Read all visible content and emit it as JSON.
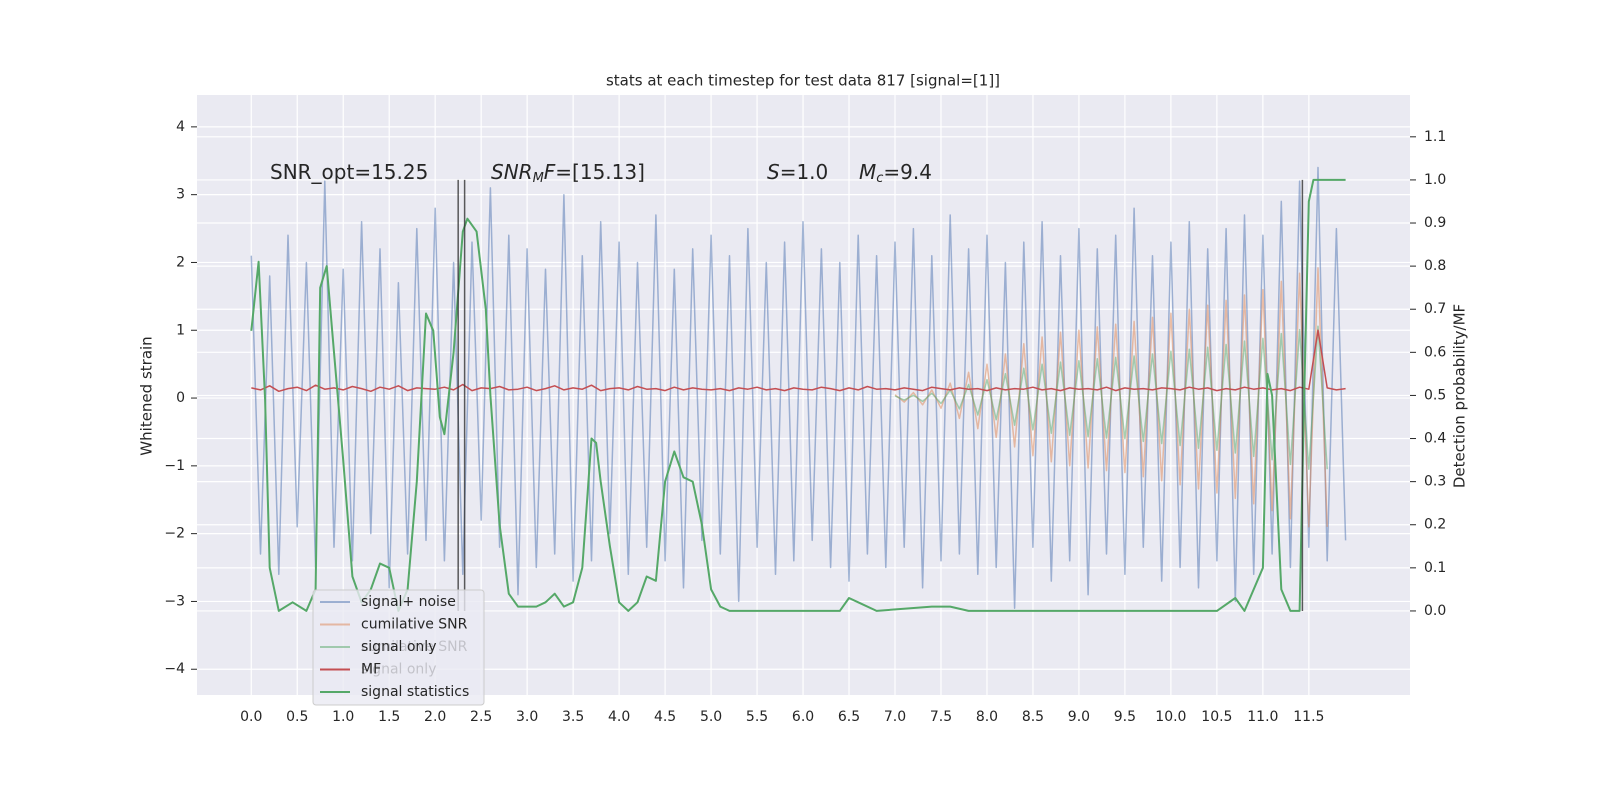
{
  "chart_data": {
    "type": "line",
    "title": "stats at each timestep for test data 817 [signal=[1]]",
    "y_label": "Whitened strain",
    "y2_label": "Detection probability/MF",
    "xlim": [
      -0.59,
      12.6
    ],
    "ylim": [
      -4.38,
      4.47
    ],
    "y2lim": [
      -0.195,
      1.197
    ],
    "grid": true,
    "xticks": [
      {
        "value": 0,
        "label": "0.0"
      },
      {
        "value": 0.5,
        "label": "0.5"
      },
      {
        "value": 1,
        "label": "1.0"
      },
      {
        "value": 1.5,
        "label": "1.5"
      },
      {
        "value": 2,
        "label": "2.0"
      },
      {
        "value": 2.5,
        "label": "2.5"
      },
      {
        "value": 3,
        "label": "3.0"
      },
      {
        "value": 3.5,
        "label": "3.5"
      },
      {
        "value": 4,
        "label": "4.0"
      },
      {
        "value": 4.5,
        "label": "4.5"
      },
      {
        "value": 5,
        "label": "5.0"
      },
      {
        "value": 5.5,
        "label": "5.5"
      },
      {
        "value": 6,
        "label": "6.0"
      },
      {
        "value": 6.5,
        "label": "6.5"
      },
      {
        "value": 7,
        "label": "7.0"
      },
      {
        "value": 7.5,
        "label": "7.5"
      },
      {
        "value": 8,
        "label": "8.0"
      },
      {
        "value": 8.5,
        "label": "8.5"
      },
      {
        "value": 9,
        "label": "9.0"
      },
      {
        "value": 9.5,
        "label": "9.5"
      },
      {
        "value": 10,
        "label": "10.0"
      },
      {
        "value": 10.5,
        "label": "10.5"
      },
      {
        "value": 11,
        "label": "11.0"
      },
      {
        "value": 11.5,
        "label": "11.5"
      }
    ],
    "yticks": [
      {
        "value": -4,
        "label": "−4"
      },
      {
        "value": -3,
        "label": "−3"
      },
      {
        "value": -2,
        "label": "−2"
      },
      {
        "value": -1,
        "label": "−1"
      },
      0,
      1,
      2,
      3,
      4
    ],
    "y2ticks": [
      {
        "value": 0,
        "label": "0.0"
      },
      {
        "value": 0.1,
        "label": "0.1"
      },
      {
        "value": 0.2,
        "label": "0.2"
      },
      {
        "value": 0.3,
        "label": "0.3"
      },
      {
        "value": 0.4,
        "label": "0.4"
      },
      {
        "value": 0.5,
        "label": "0.5"
      },
      {
        "value": 0.6,
        "label": "0.6"
      },
      {
        "value": 0.7,
        "label": "0.7"
      },
      {
        "value": 0.8,
        "label": "0.8"
      },
      {
        "value": 0.9,
        "label": "0.9"
      },
      {
        "value": 1,
        "label": "1.0"
      },
      {
        "value": 1.1,
        "label": "1.1"
      }
    ],
    "x": [
      0,
      0.1,
      0.2,
      0.3,
      0.4,
      0.5,
      0.6,
      0.7,
      0.8,
      0.9,
      1,
      1.1,
      1.2,
      1.3,
      1.4,
      1.5,
      1.6,
      1.7,
      1.8,
      1.9,
      2,
      2.1,
      2.2,
      2.3,
      2.4,
      2.5,
      2.6,
      2.7,
      2.8,
      2.9,
      3,
      3.1,
      3.2,
      3.3,
      3.4,
      3.5,
      3.6,
      3.7,
      3.8,
      3.9,
      4,
      4.1,
      4.2,
      4.3,
      4.4,
      4.5,
      4.6,
      4.7,
      4.8,
      4.9,
      5,
      5.1,
      5.2,
      5.3,
      5.4,
      5.5,
      5.6,
      5.7,
      5.8,
      5.9,
      6,
      6.1,
      6.2,
      6.3,
      6.4,
      6.5,
      6.6,
      6.7,
      6.8,
      6.9,
      7,
      7.1,
      7.2,
      7.3,
      7.4,
      7.5,
      7.6,
      7.7,
      7.8,
      7.9,
      8,
      8.1,
      8.2,
      8.3,
      8.4,
      8.5,
      8.6,
      8.7,
      8.8,
      8.9,
      9,
      9.1,
      9.2,
      9.3,
      9.4,
      9.5,
      9.6,
      9.7,
      9.8,
      9.9,
      10,
      10.1,
      10.2,
      10.3,
      10.4,
      10.5,
      10.6,
      10.7,
      10.8,
      10.9,
      11,
      11.1,
      11.2,
      11.3,
      11.4,
      11.5,
      11.6,
      11.7,
      11.8,
      11.9
    ],
    "series": [
      {
        "name": "signal+ noise",
        "color": "#4c72b0",
        "opacity": 0.5,
        "values": [
          2.1,
          -2.3,
          1.8,
          -2.6,
          2.4,
          -1.9,
          2.0,
          -2.5,
          3.2,
          -2.2,
          1.9,
          -2.4,
          2.6,
          -2.0,
          2.2,
          -2.8,
          1.7,
          -2.3,
          2.5,
          -2.1,
          2.8,
          -2.4,
          2.0,
          -2.6,
          2.3,
          -1.8,
          3.1,
          -2.2,
          2.4,
          -2.9,
          2.2,
          -2.5,
          1.9,
          -2.3,
          3.0,
          -2.7,
          2.1,
          -2.4,
          2.6,
          -2.0,
          2.3,
          -2.6,
          2.0,
          -2.2,
          2.7,
          -2.4,
          1.9,
          -2.8,
          2.2,
          -2.1,
          2.4,
          -2.3,
          2.1,
          -3.0,
          2.5,
          -2.2,
          2.0,
          -2.6,
          2.3,
          -2.4,
          2.6,
          -2.1,
          2.2,
          -2.5,
          2.0,
          -2.7,
          2.4,
          -2.3,
          2.1,
          -2.5,
          2.3,
          -2.2,
          2.5,
          -2.8,
          2.1,
          -2.4,
          2.7,
          -2.3,
          2.2,
          -2.6,
          2.4,
          -2.5,
          2.0,
          -3.1,
          2.3,
          -2.2,
          2.6,
          -2.7,
          2.1,
          -2.4,
          2.5,
          -2.9,
          2.2,
          -2.3,
          2.4,
          -2.6,
          2.8,
          -2.2,
          2.1,
          -2.7,
          2.3,
          -2.5,
          2.6,
          -2.8,
          2.2,
          -2.4,
          2.5,
          -3.0,
          2.7,
          -2.6,
          2.4,
          -2.3,
          2.9,
          -2.5,
          3.2,
          -2.2,
          3.4,
          -2.4,
          2.5,
          -2.1
        ]
      },
      {
        "name": "cumilative SNR",
        "color": "#dd8452",
        "opacity": 0.5,
        "x": [
          7,
          7.1,
          7.2,
          7.3,
          7.4,
          7.5,
          7.6,
          7.7,
          7.8,
          7.9,
          8,
          8.1,
          8.2,
          8.3,
          8.4,
          8.5,
          8.6,
          8.7,
          8.8,
          8.9,
          9,
          9.1,
          9.2,
          9.3,
          9.4,
          9.5,
          9.6,
          9.7,
          9.8,
          9.9,
          10,
          10.1,
          10.2,
          10.3,
          10.4,
          10.5,
          10.6,
          10.7,
          10.8,
          10.9,
          11,
          11.1,
          11.2,
          11.3,
          11.4,
          11.5,
          11.6,
          11.7
        ],
        "values": [
          0.05,
          -0.06,
          0.08,
          -0.1,
          0.12,
          -0.15,
          0.22,
          -0.3,
          0.38,
          -0.45,
          0.5,
          -0.58,
          0.65,
          -0.72,
          0.8,
          -0.85,
          0.9,
          -0.94,
          0.97,
          -1.0,
          1.0,
          -1.03,
          1.05,
          -1.07,
          1.09,
          -1.1,
          1.13,
          -1.16,
          1.19,
          -1.22,
          1.25,
          -1.28,
          1.31,
          -1.34,
          1.37,
          -1.4,
          1.44,
          -1.48,
          1.52,
          -1.56,
          1.6,
          -1.66,
          1.72,
          -1.78,
          1.84,
          -1.9,
          1.92,
          -1.9
        ]
      },
      {
        "name": "signal only",
        "color": "#55a868",
        "opacity": 0.5,
        "x": [
          7,
          7.1,
          7.2,
          7.3,
          7.4,
          7.5,
          7.6,
          7.7,
          7.8,
          7.9,
          8,
          8.1,
          8.2,
          8.3,
          8.4,
          8.5,
          8.6,
          8.7,
          8.8,
          8.9,
          9,
          9.1,
          9.2,
          9.3,
          9.4,
          9.5,
          9.6,
          9.7,
          9.8,
          9.9,
          10,
          10.1,
          10.2,
          10.3,
          10.4,
          10.5,
          10.6,
          10.7,
          10.8,
          10.9,
          11,
          11.1,
          11.2,
          11.3,
          11.4,
          11.5,
          11.6,
          11.7
        ],
        "values": [
          0.03,
          -0.03,
          0.04,
          -0.05,
          0.07,
          -0.08,
          0.12,
          -0.16,
          0.2,
          -0.25,
          0.27,
          -0.32,
          0.36,
          -0.4,
          0.44,
          -0.47,
          0.5,
          -0.52,
          0.53,
          -0.55,
          0.55,
          -0.57,
          0.58,
          -0.59,
          0.6,
          -0.6,
          0.62,
          -0.64,
          0.65,
          -0.67,
          0.69,
          -0.7,
          0.72,
          -0.74,
          0.75,
          -0.77,
          0.79,
          -0.81,
          0.84,
          -0.86,
          0.88,
          -0.91,
          0.95,
          -0.98,
          1.01,
          -1.05,
          1.06,
          -1.05
        ]
      },
      {
        "name": "MF",
        "color": "#c44e52",
        "opacity": 1,
        "values": [
          0.15,
          0.12,
          0.18,
          0.1,
          0.14,
          0.16,
          0.11,
          0.19,
          0.13,
          0.15,
          0.12,
          0.17,
          0.14,
          0.1,
          0.16,
          0.13,
          0.18,
          0.11,
          0.15,
          0.14,
          0.13,
          0.16,
          0.12,
          0.2,
          0.11,
          0.15,
          0.14,
          0.17,
          0.12,
          0.13,
          0.16,
          0.11,
          0.14,
          0.18,
          0.12,
          0.15,
          0.13,
          0.19,
          0.11,
          0.14,
          0.15,
          0.12,
          0.17,
          0.13,
          0.14,
          0.11,
          0.16,
          0.12,
          0.15,
          0.13,
          0.12,
          0.14,
          0.11,
          0.15,
          0.13,
          0.16,
          0.12,
          0.14,
          0.11,
          0.15,
          0.13,
          0.12,
          0.16,
          0.14,
          0.11,
          0.15,
          0.12,
          0.17,
          0.13,
          0.14,
          0.12,
          0.15,
          0.13,
          0.11,
          0.16,
          0.14,
          0.12,
          0.15,
          0.13,
          0.14,
          0.11,
          0.15,
          0.12,
          0.14,
          0.13,
          0.16,
          0.12,
          0.14,
          0.11,
          0.15,
          0.13,
          0.14,
          0.12,
          0.16,
          0.11,
          0.15,
          0.13,
          0.14,
          0.12,
          0.15,
          0.14,
          0.12,
          0.16,
          0.13,
          0.15,
          0.11,
          0.14,
          0.12,
          0.16,
          0.13,
          0.15,
          0.12,
          0.14,
          0.11,
          0.16,
          0.13,
          1.0,
          0.15,
          0.12,
          0.14
        ]
      },
      {
        "name": "signal statistics",
        "color": "#55a868",
        "opacity": 1,
        "axis": "y2",
        "x": [
          0,
          0.08,
          0.15,
          0.2,
          0.3,
          0.45,
          0.6,
          0.7,
          0.75,
          0.82,
          0.9,
          1.0,
          1.1,
          1.2,
          1.3,
          1.4,
          1.5,
          1.6,
          1.7,
          1.8,
          1.9,
          1.98,
          2.05,
          2.1,
          2.2,
          2.3,
          2.35,
          2.45,
          2.55,
          2.6,
          2.7,
          2.8,
          2.9,
          3.0,
          3.1,
          3.2,
          3.3,
          3.4,
          3.5,
          3.6,
          3.7,
          3.75,
          3.8,
          3.9,
          4.0,
          4.1,
          4.2,
          4.3,
          4.4,
          4.5,
          4.6,
          4.7,
          4.8,
          4.9,
          5.0,
          5.1,
          5.2,
          5.5,
          6.0,
          6.4,
          6.5,
          6.6,
          6.8,
          7.4,
          7.6,
          7.8,
          10.5,
          10.7,
          10.8,
          11.0,
          11.05,
          11.1,
          11.2,
          11.3,
          11.4,
          11.45,
          11.5,
          11.55,
          11.7,
          11.9
        ],
        "values": [
          0.65,
          0.81,
          0.49,
          0.1,
          0.0,
          0.02,
          0.0,
          0.05,
          0.75,
          0.8,
          0.6,
          0.35,
          0.08,
          0.02,
          0.05,
          0.11,
          0.1,
          0.0,
          0.05,
          0.3,
          0.69,
          0.65,
          0.45,
          0.41,
          0.6,
          0.88,
          0.91,
          0.88,
          0.7,
          0.5,
          0.2,
          0.04,
          0.01,
          0.01,
          0.01,
          0.02,
          0.04,
          0.01,
          0.02,
          0.1,
          0.4,
          0.39,
          0.3,
          0.15,
          0.02,
          0.0,
          0.02,
          0.08,
          0.07,
          0.3,
          0.37,
          0.31,
          0.3,
          0.2,
          0.05,
          0.01,
          0.0,
          0.0,
          0.0,
          0.0,
          0.03,
          0.02,
          0.0,
          0.01,
          0.01,
          0.0,
          0.0,
          0.03,
          0.0,
          0.1,
          0.55,
          0.5,
          0.05,
          0.0,
          0.0,
          0.5,
          0.95,
          1.0,
          1.0,
          1.0
        ]
      }
    ],
    "vlines": [
      {
        "x": 2.25,
        "ymin": 0,
        "ymax": 1
      },
      {
        "x": 2.32,
        "ymin": 0,
        "ymax": 1
      },
      {
        "x": 11.43,
        "ymin": 0,
        "ymax": 1
      }
    ],
    "vline_color": "#333333",
    "annotations": [
      [
        {
          "text": "SNR_opt=15.25",
          "style": "normal"
        }
      ],
      [
        {
          "text": "SNR",
          "style": "italic"
        },
        {
          "text": "M",
          "style": "sub"
        },
        {
          "text": "F",
          "style": "italic"
        },
        {
          "text": "=[15.13]",
          "style": "normal"
        }
      ],
      [
        {
          "text": "S",
          "style": "italic"
        },
        {
          "text": "=1.0",
          "style": "normal"
        }
      ],
      [
        {
          "text": "M",
          "style": "italic"
        },
        {
          "text": "c",
          "style": "sub"
        },
        {
          "text": "=9.4",
          "style": "normal"
        }
      ]
    ],
    "hidden_legend": [
      "cumilative SNR",
      "signal only"
    ],
    "legend": "lower left"
  }
}
